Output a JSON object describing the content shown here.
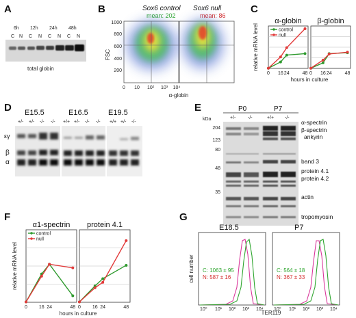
{
  "panels": {
    "A": {
      "label": "A",
      "timepoints": [
        "6h",
        "12h",
        "24h",
        "48h"
      ],
      "lanes": [
        "C",
        "N",
        "C",
        "N",
        "C",
        "N",
        "C",
        "N"
      ],
      "caption": "total globin"
    },
    "B": {
      "label": "B",
      "control_title": "Sox6 control",
      "null_title": "Sox6 null",
      "control_mean": "mean: 202",
      "null_mean": "mean: 86",
      "ylabel": "FSC",
      "xlabel": "α-globin",
      "yticks": [
        "200",
        "400",
        "600",
        "800",
        "1000"
      ],
      "xticks": [
        "0",
        "10",
        "10²",
        "10³",
        "10⁴"
      ],
      "ytick_values": [
        200,
        400,
        600,
        800,
        1000
      ]
    },
    "C": {
      "label": "C"
    },
    "D": {
      "label": "D",
      "ages": [
        "E15.5",
        "E16.5",
        "E19.5"
      ],
      "genotypes": [
        [
          "+/-",
          "+/-",
          "-/-",
          "-/-"
        ],
        [
          "+/+",
          "+/-",
          "-/-",
          "-/-"
        ],
        [
          "+/+",
          "+/-",
          "-/-"
        ]
      ],
      "band_labels": [
        "εγ",
        "β",
        "α"
      ]
    },
    "E": {
      "label": "E",
      "kda_label": "kDa",
      "markers": [
        "204",
        "123",
        "80",
        "48",
        "35"
      ],
      "groups": [
        {
          "name": "P0",
          "genotypes": [
            "+/-",
            "-/-"
          ]
        },
        {
          "name": "P7",
          "genotypes": [
            "+/+",
            "-/-"
          ]
        }
      ],
      "proteins": [
        "α-spectrin",
        "β-spectrin",
        "ankyrin",
        "band 3",
        "protein 4.1",
        "protein 4.2",
        "actin",
        "tropomyosin"
      ]
    },
    "F": {
      "label": "F"
    },
    "G": {
      "label": "G",
      "ylabel": "cell number",
      "xlabel": "TER119",
      "xticks": [
        "10⁰",
        "10¹",
        "10²",
        "10³",
        "10⁴"
      ],
      "subpanels": [
        {
          "title": "E18.5",
          "control_text": "C: 1063 ± 95",
          "null_text": "N: 587 ± 16"
        },
        {
          "title": "P7",
          "control_text": "C: 564 ± 18",
          "null_text": "N: 367 ± 33"
        }
      ]
    }
  },
  "colors": {
    "control": "#2e9a2e",
    "null": "#e23a3a",
    "control_text": "#2ea52e",
    "null_text": "#d43030"
  },
  "chart_data": [
    {
      "panel": "C",
      "type": "line",
      "ylabel": "relative mRNA level",
      "xlabel": "hours in culture",
      "xticks": [
        0,
        16,
        24,
        48
      ],
      "xlim": [
        0,
        52
      ],
      "ylim": [
        0,
        230
      ],
      "legend": [
        "control",
        "null"
      ],
      "legend_placement": "top-left",
      "subplots": [
        {
          "title": "α-globin",
          "series": [
            {
              "name": "control",
              "x": [
                0,
                16,
                24,
                48
              ],
              "values": [
                1,
                35,
                72,
                80
              ]
            },
            {
              "name": "null",
              "x": [
                0,
                16,
                24,
                48
              ],
              "values": [
                1,
                62,
                112,
                215
              ]
            }
          ]
        },
        {
          "title": "β-globin",
          "series": [
            {
              "name": "control",
              "x": [
                0,
                16,
                24,
                48
              ],
              "values": [
                1,
                30,
                80,
                85
              ]
            },
            {
              "name": "null",
              "x": [
                0,
                16,
                24,
                48
              ],
              "values": [
                1,
                45,
                78,
                88
              ]
            }
          ]
        }
      ]
    },
    {
      "panel": "F",
      "type": "line",
      "ylabel": "relative mRNA level",
      "xlabel": "hours in culture",
      "xticks": [
        0,
        16,
        24,
        48
      ],
      "xlim": [
        0,
        52
      ],
      "ylim": [
        0,
        200
      ],
      "legend": [
        "control",
        "null"
      ],
      "legend_placement": "top-left",
      "subplots": [
        {
          "title": "α1-spectrin",
          "series": [
            {
              "name": "control",
              "x": [
                0,
                16,
                24,
                48
              ],
              "values": [
                1,
                78,
                105,
                18
              ]
            },
            {
              "name": "null",
              "x": [
                0,
                16,
                24,
                48
              ],
              "values": [
                1,
                72,
                105,
                95
              ]
            }
          ]
        },
        {
          "title": "protein 4.1",
          "series": [
            {
              "name": "control",
              "x": [
                0,
                16,
                24,
                48
              ],
              "values": [
                1,
                45,
                65,
                102
              ]
            },
            {
              "name": "null",
              "x": [
                0,
                16,
                24,
                48
              ],
              "values": [
                1,
                40,
                55,
                170
              ]
            }
          ]
        }
      ]
    }
  ]
}
